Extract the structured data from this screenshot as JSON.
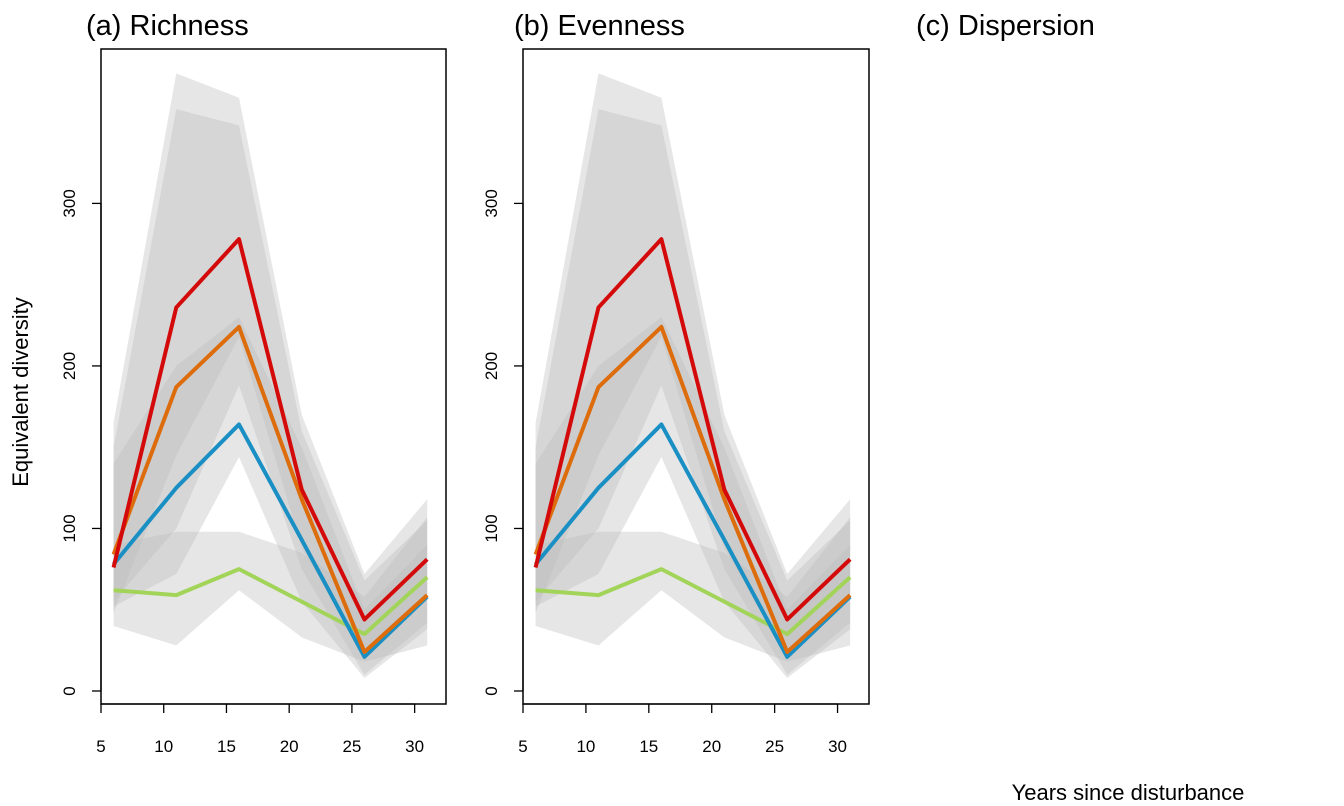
{
  "ylabel": "Equivalent diversity",
  "xlabel": "Years since disturbance",
  "colors": {
    "green": "#a3d45a",
    "blue": "#1a8fc4",
    "orange": "#dd6c0c",
    "red": "#d40a0a",
    "band_fill": "#bdbdbd",
    "frame": "#000000"
  },
  "chart_data": [
    {
      "type": "line",
      "title": "(a) Richness",
      "x": [
        6,
        11,
        16,
        21,
        26,
        31
      ],
      "xticks": [
        5,
        10,
        15,
        20,
        25,
        30
      ],
      "yticks": [
        0,
        100,
        200,
        300
      ],
      "xlim": [
        5,
        32.5
      ],
      "ylim": [
        -8,
        395
      ],
      "series": [
        {
          "color": "green",
          "values": [
            62,
            59,
            75,
            55,
            35,
            70
          ],
          "lower": [
            40,
            28,
            62,
            33,
            18,
            28
          ],
          "upper": [
            90,
            98,
            98,
            85,
            58,
            107
          ]
        },
        {
          "color": "blue",
          "values": [
            78,
            125,
            164,
            93,
            21,
            58
          ],
          "lower": [
            52,
            72,
            144,
            55,
            8,
            38
          ],
          "upper": [
            140,
            200,
            230,
            150,
            50,
            90
          ]
        },
        {
          "color": "orange",
          "values": [
            84,
            187,
            224,
            118,
            24,
            59
          ],
          "lower": [
            55,
            100,
            188,
            75,
            10,
            42
          ],
          "upper": [
            150,
            358,
            348,
            160,
            68,
            105
          ]
        },
        {
          "color": "red",
          "values": [
            76,
            236,
            278,
            124,
            44,
            81
          ],
          "lower": [
            48,
            145,
            218,
            88,
            22,
            60
          ],
          "upper": [
            165,
            380,
            365,
            170,
            72,
            118
          ]
        }
      ]
    },
    {
      "type": "line",
      "title": "(b) Evenness",
      "x": [
        6,
        11,
        16,
        21,
        26,
        31
      ],
      "xticks": [
        5,
        10,
        15,
        20,
        25,
        30
      ],
      "yticks": [
        0,
        100,
        200,
        300
      ],
      "xlim": [
        5,
        32.5
      ],
      "ylim": [
        -8,
        395
      ],
      "series": [
        {
          "color": "green",
          "values": [
            62,
            59,
            75,
            55,
            35,
            70
          ],
          "lower": [
            40,
            28,
            62,
            33,
            18,
            28
          ],
          "upper": [
            90,
            98,
            98,
            85,
            58,
            107
          ]
        },
        {
          "color": "blue",
          "values": [
            78,
            125,
            164,
            93,
            21,
            58
          ],
          "lower": [
            52,
            72,
            144,
            55,
            8,
            38
          ],
          "upper": [
            140,
            200,
            230,
            150,
            50,
            90
          ]
        },
        {
          "color": "orange",
          "values": [
            84,
            187,
            224,
            118,
            24,
            59
          ],
          "lower": [
            55,
            100,
            188,
            75,
            10,
            42
          ],
          "upper": [
            150,
            358,
            348,
            160,
            68,
            105
          ]
        },
        {
          "color": "red",
          "values": [
            76,
            236,
            278,
            124,
            44,
            81
          ],
          "lower": [
            48,
            145,
            218,
            88,
            22,
            60
          ],
          "upper": [
            165,
            380,
            365,
            170,
            72,
            118
          ]
        }
      ]
    },
    {
      "type": "line",
      "title": "(c) Dispersion",
      "x": [],
      "series": []
    }
  ]
}
